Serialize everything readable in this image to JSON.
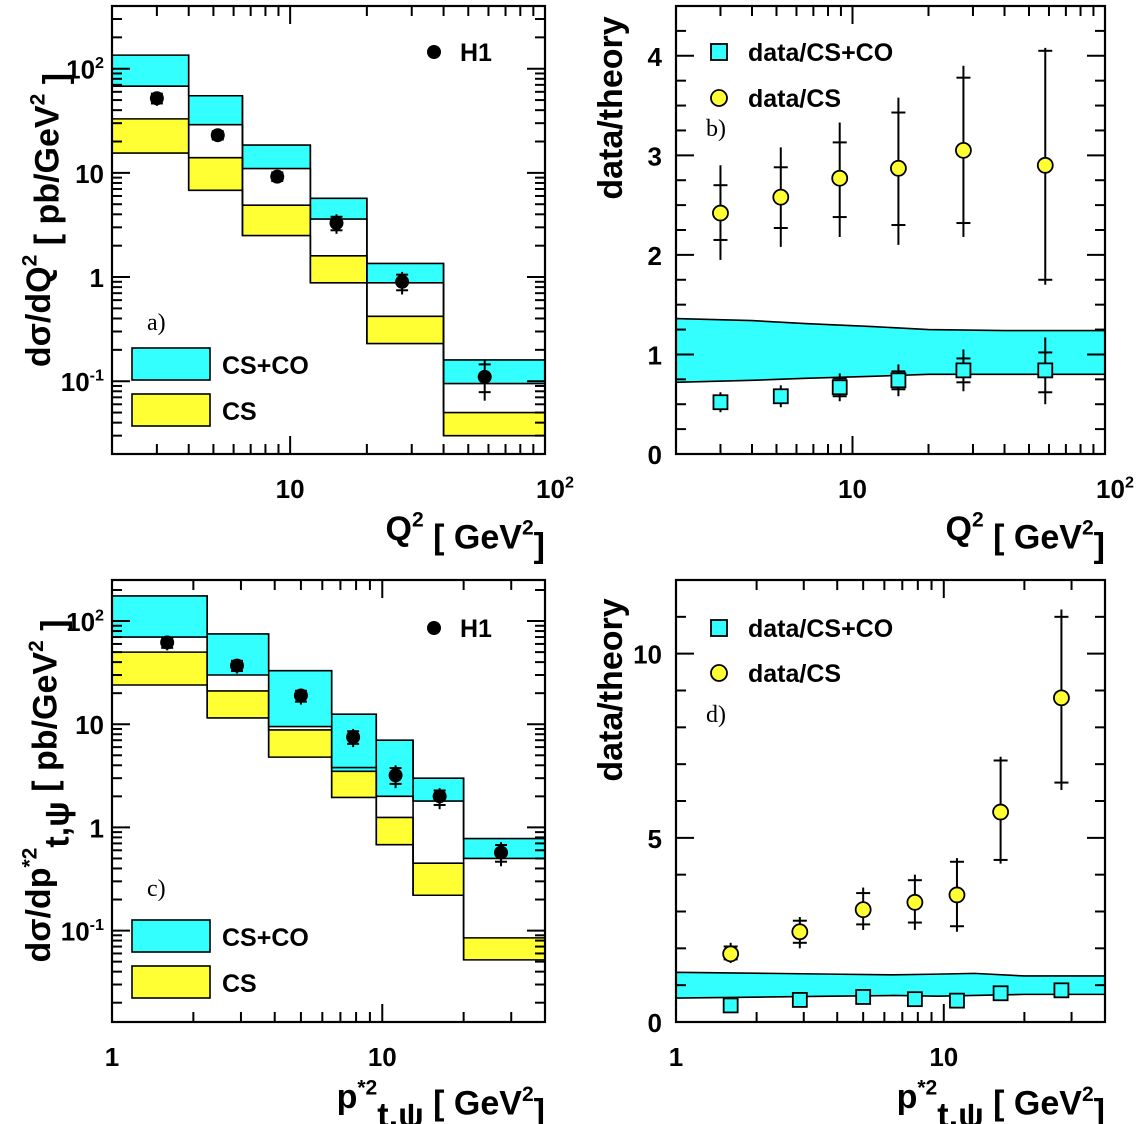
{
  "colors": {
    "cs_co": "#33ffff",
    "cs": "#ffff33",
    "data_marker": "#000000",
    "ratio_square": "#33ffff",
    "ratio_circle": "#ffff33"
  },
  "chart_data": [
    {
      "id": "a",
      "type": "histogram",
      "panel_label": "a)",
      "ylabel": "dσ/dQ² [ pb/GeV² ]",
      "xlabel": "Q² [ GeV² ]",
      "xscale": "log",
      "yscale": "log",
      "xlim": [
        2,
        100
      ],
      "ylim": [
        0.02,
        400
      ],
      "x_tick_labels": [
        "10",
        "10²"
      ],
      "y_tick_labels": [
        "10⁻¹",
        "1",
        "10",
        "10²"
      ],
      "legend": [
        {
          "marker": "circle",
          "label": "H1"
        },
        {
          "marker": "band-cyan",
          "label": "CS+CO"
        },
        {
          "marker": "band-yellow",
          "label": "CS"
        }
      ],
      "bins": [
        [
          2,
          4
        ],
        [
          4,
          6.5
        ],
        [
          6.5,
          12
        ],
        [
          12,
          20
        ],
        [
          20,
          40
        ],
        [
          40,
          100
        ]
      ],
      "cs_co_band": [
        [
          68,
          135
        ],
        [
          29,
          55
        ],
        [
          11,
          18.5
        ],
        [
          3.6,
          5.7
        ],
        [
          0.88,
          1.35
        ],
        [
          0.095,
          0.16
        ]
      ],
      "cs_band": [
        [
          15.5,
          33
        ],
        [
          6.8,
          14
        ],
        [
          2.5,
          4.9
        ],
        [
          0.88,
          1.6
        ],
        [
          0.23,
          0.42
        ],
        [
          0.03,
          0.05
        ]
      ],
      "data": {
        "name": "H1",
        "x": [
          3,
          5.2,
          8.9,
          15.2,
          27.5,
          58
        ],
        "y": [
          52,
          23,
          9.2,
          3.3,
          0.9,
          0.11
        ],
        "err_low": [
          44,
          20,
          8.0,
          2.6,
          0.68,
          0.065
        ],
        "err_high": [
          60,
          26,
          10.5,
          4.0,
          1.12,
          0.16
        ]
      }
    },
    {
      "id": "b",
      "type": "ratio",
      "panel_label": "b)",
      "ylabel": "data/theory",
      "xlabel": "Q² [ GeV² ]",
      "xscale": "log",
      "yscale": "linear",
      "xlim": [
        2,
        100
      ],
      "ylim": [
        0,
        4.5
      ],
      "x_tick_labels": [
        "10",
        "10²"
      ],
      "y_tick_labels": [
        "0",
        "1",
        "2",
        "3",
        "4"
      ],
      "legend": [
        {
          "marker": "square",
          "label": "data/CS+CO"
        },
        {
          "marker": "circle-yellow",
          "label": "data/CS"
        }
      ],
      "band_edges": [
        2,
        4,
        6.5,
        12,
        20,
        40,
        100
      ],
      "band_low": [
        0.72,
        0.74,
        0.76,
        0.78,
        0.8,
        0.8,
        0.8
      ],
      "band_high": [
        1.36,
        1.34,
        1.31,
        1.28,
        1.25,
        1.24,
        1.24
      ],
      "series": [
        {
          "name": "data/CS+CO",
          "marker": "square",
          "x": [
            3,
            5.2,
            8.9,
            15.2,
            27.5,
            58
          ],
          "y": [
            0.52,
            0.58,
            0.67,
            0.74,
            0.84,
            0.84
          ],
          "stat_low": [
            0.47,
            0.52,
            0.58,
            0.65,
            0.72,
            0.62
          ],
          "stat_high": [
            0.57,
            0.64,
            0.76,
            0.83,
            0.96,
            1.02
          ],
          "tot_low": [
            0.42,
            0.47,
            0.53,
            0.58,
            0.63,
            0.5
          ],
          "tot_high": [
            0.62,
            0.69,
            0.81,
            0.9,
            1.05,
            1.17
          ]
        },
        {
          "name": "data/CS",
          "marker": "circle",
          "x": [
            3,
            5.2,
            8.9,
            15.2,
            27.5,
            58
          ],
          "y": [
            2.42,
            2.58,
            2.77,
            2.87,
            3.05,
            2.9
          ],
          "stat_low": [
            2.15,
            2.27,
            2.38,
            2.3,
            2.32,
            1.75
          ],
          "stat_high": [
            2.7,
            2.88,
            3.13,
            3.43,
            3.78,
            4.05
          ],
          "tot_low": [
            1.95,
            2.08,
            2.18,
            2.1,
            2.18,
            1.7
          ],
          "tot_high": [
            2.9,
            3.08,
            3.33,
            3.58,
            3.9,
            4.08
          ]
        }
      ]
    },
    {
      "id": "c",
      "type": "histogram",
      "panel_label": "c)",
      "ylabel": "dσ/dp*²t,ψ [ pb/GeV² ]",
      "xlabel": "p*²t,ψ [ GeV² ]",
      "xscale": "log",
      "yscale": "log",
      "xlim": [
        1,
        40
      ],
      "ylim": [
        0.013,
        250
      ],
      "x_tick_labels": [
        "1",
        "10"
      ],
      "y_tick_labels": [
        "10⁻¹",
        "1",
        "10",
        "10²"
      ],
      "legend": [
        {
          "marker": "circle",
          "label": "H1"
        },
        {
          "marker": "band-cyan",
          "label": "CS+CO"
        },
        {
          "marker": "band-yellow",
          "label": "CS"
        }
      ],
      "bins": [
        [
          1,
          2.25
        ],
        [
          2.25,
          3.8
        ],
        [
          3.8,
          6.5
        ],
        [
          6.5,
          9.5
        ],
        [
          9.5,
          13
        ],
        [
          13,
          20
        ],
        [
          20,
          40
        ]
      ],
      "cs_co_band": [
        [
          70,
          175
        ],
        [
          30,
          75
        ],
        [
          9.5,
          33
        ],
        [
          3.5,
          12.5
        ],
        [
          2.0,
          7.0
        ],
        [
          1.8,
          3.0
        ],
        [
          0.5,
          0.78
        ]
      ],
      "cs_band": [
        [
          24,
          50
        ],
        [
          11.5,
          21
        ],
        [
          4.8,
          8.8
        ],
        [
          1.95,
          3.8
        ],
        [
          0.68,
          1.25
        ],
        [
          0.22,
          0.45
        ],
        [
          0.052,
          0.085
        ]
      ],
      "data": {
        "name": "H1",
        "x": [
          1.6,
          2.9,
          5.0,
          7.8,
          11.2,
          16.3,
          27.5
        ],
        "y": [
          62,
          37,
          19,
          7.5,
          3.2,
          2.0,
          0.57
        ],
        "err_low": [
          52,
          31,
          15.5,
          6.0,
          2.4,
          1.5,
          0.42
        ],
        "err_high": [
          72,
          43,
          22,
          9.0,
          4.0,
          2.4,
          0.72
        ]
      }
    },
    {
      "id": "d",
      "type": "ratio",
      "panel_label": "d)",
      "ylabel": "data/theory",
      "xlabel": "p*²t,ψ [ GeV² ]",
      "xscale": "log",
      "yscale": "linear",
      "xlim": [
        1,
        40
      ],
      "ylim": [
        0,
        12
      ],
      "x_tick_labels": [
        "1",
        "10"
      ],
      "y_tick_labels": [
        "0",
        "5",
        "10"
      ],
      "legend": [
        {
          "marker": "square",
          "label": "data/CS+CO"
        },
        {
          "marker": "circle-yellow",
          "label": "data/CS"
        }
      ],
      "band_edges": [
        1,
        2.25,
        3.8,
        6.5,
        9.5,
        13,
        20,
        40
      ],
      "band_low": [
        0.65,
        0.68,
        0.7,
        0.72,
        0.7,
        0.72,
        0.75,
        0.75
      ],
      "band_high": [
        1.35,
        1.32,
        1.3,
        1.28,
        1.3,
        1.32,
        1.25,
        1.25
      ],
      "series": [
        {
          "name": "data/CS+CO",
          "marker": "square",
          "x": [
            1.6,
            2.9,
            5.0,
            7.8,
            11.2,
            16.3,
            27.5
          ],
          "y": [
            0.45,
            0.6,
            0.68,
            0.62,
            0.58,
            0.78,
            0.86
          ],
          "stat_low": [
            0.4,
            0.55,
            0.62,
            0.56,
            0.52,
            0.7,
            0.76
          ],
          "stat_high": [
            0.5,
            0.65,
            0.74,
            0.68,
            0.64,
            0.86,
            0.96
          ],
          "tot_low": [
            0.36,
            0.5,
            0.58,
            0.5,
            0.46,
            0.64,
            0.68
          ],
          "tot_high": [
            0.54,
            0.7,
            0.78,
            0.74,
            0.7,
            0.92,
            1.04
          ]
        },
        {
          "name": "data/CS",
          "marker": "circle",
          "x": [
            1.6,
            2.9,
            5.0,
            7.8,
            11.2,
            16.3,
            27.5
          ],
          "y": [
            1.85,
            2.45,
            3.05,
            3.25,
            3.45,
            5.7,
            8.8
          ],
          "stat_low": [
            1.7,
            2.15,
            2.65,
            2.7,
            2.6,
            4.4,
            6.5
          ],
          "stat_high": [
            2.05,
            2.75,
            3.5,
            3.85,
            4.35,
            7.1,
            11.0
          ],
          "tot_low": [
            1.6,
            2.0,
            2.5,
            2.5,
            2.45,
            4.3,
            6.3
          ],
          "tot_high": [
            2.15,
            2.85,
            3.65,
            4.0,
            4.45,
            7.2,
            11.2
          ]
        }
      ]
    }
  ]
}
